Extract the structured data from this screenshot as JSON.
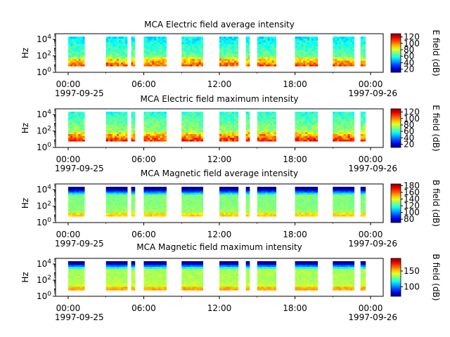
{
  "chart_data": [
    {
      "type": "heatmap",
      "title": "MCA  Electric field average intensity",
      "ylabel": "Hz",
      "yscale": "log",
      "ylim_exponents": [
        0,
        4.7
      ],
      "yticks": [
        {
          "base": "10",
          "exp": "0"
        },
        {
          "base": "10",
          "exp": "2"
        },
        {
          "base": "10",
          "exp": "4"
        }
      ],
      "xticks": [
        "00:00",
        "06:00",
        "12:00",
        "18:00",
        "00:00"
      ],
      "xtick_dates": [
        "1997-09-25",
        "1997-09-26"
      ],
      "xlim_hours": [
        -1,
        25
      ],
      "colorbar_label": "E field (dB)",
      "colorbar_ticks": [
        "20",
        "40",
        "60",
        "80",
        "100",
        "120"
      ],
      "colorbar_range": [
        10,
        130
      ],
      "data_segments_hours": [
        [
          0.0,
          1.3
        ],
        [
          3.0,
          4.7
        ],
        [
          5.0,
          5.3
        ],
        [
          6.0,
          7.8
        ],
        [
          9.0,
          10.7
        ],
        [
          12.0,
          13.5
        ],
        [
          14.1,
          14.4
        ],
        [
          15.0,
          16.5
        ],
        [
          18.0,
          19.8
        ],
        [
          21.0,
          22.7
        ],
        [
          23.2,
          23.6
        ]
      ],
      "intensity_profile": "low-frequency enhancement, 20-120 dB",
      "colormap": "jet"
    },
    {
      "type": "heatmap",
      "title": "MCA  Electric field maximum intensity",
      "ylabel": "Hz",
      "yscale": "log",
      "ylim_exponents": [
        0,
        4.7
      ],
      "yticks": [
        {
          "base": "10",
          "exp": "0"
        },
        {
          "base": "10",
          "exp": "2"
        },
        {
          "base": "10",
          "exp": "4"
        }
      ],
      "xticks": [
        "00:00",
        "06:00",
        "12:00",
        "18:00",
        "00:00"
      ],
      "xtick_dates": [
        "1997-09-25",
        "1997-09-26"
      ],
      "xlim_hours": [
        -1,
        25
      ],
      "colorbar_label": "E field (dB)",
      "colorbar_ticks": [
        "20",
        "40",
        "60",
        "80",
        "100",
        "120"
      ],
      "colorbar_range": [
        10,
        130
      ],
      "data_segments_hours": [
        [
          0.0,
          1.3
        ],
        [
          3.0,
          4.7
        ],
        [
          5.0,
          5.3
        ],
        [
          6.0,
          7.8
        ],
        [
          9.0,
          10.7
        ],
        [
          12.0,
          13.5
        ],
        [
          14.1,
          14.4
        ],
        [
          15.0,
          16.5
        ],
        [
          18.0,
          19.8
        ],
        [
          21.0,
          22.7
        ],
        [
          23.2,
          23.6
        ]
      ],
      "intensity_profile": "low-frequency enhancement, 20-120 dB",
      "colormap": "jet"
    },
    {
      "type": "heatmap",
      "title": "MCA  Magnetic field average intensity",
      "ylabel": "Hz",
      "yscale": "log",
      "ylim_exponents": [
        0,
        4.7
      ],
      "yticks": [
        {
          "base": "10",
          "exp": "0"
        },
        {
          "base": "10",
          "exp": "2"
        },
        {
          "base": "10",
          "exp": "4"
        }
      ],
      "xticks": [
        "00:00",
        "06:00",
        "12:00",
        "18:00",
        "00:00"
      ],
      "xtick_dates": [
        "1997-09-25",
        "1997-09-26"
      ],
      "xlim_hours": [
        -1,
        25
      ],
      "colorbar_label": "B field (dB)",
      "colorbar_ticks": [
        "80",
        "100",
        "120",
        "140",
        "160",
        "180"
      ],
      "colorbar_range": [
        70,
        185
      ],
      "data_segments_hours": [
        [
          0.0,
          1.3
        ],
        [
          3.0,
          4.7
        ],
        [
          5.0,
          5.3
        ],
        [
          6.0,
          7.8
        ],
        [
          9.0,
          10.7
        ],
        [
          12.0,
          13.5
        ],
        [
          14.1,
          14.4
        ],
        [
          15.0,
          16.5
        ],
        [
          18.0,
          19.8
        ],
        [
          21.0,
          22.7
        ],
        [
          23.2,
          23.6
        ]
      ],
      "intensity_profile": "high at low frequencies, decreasing above 10^3 Hz",
      "colormap": "jet"
    },
    {
      "type": "heatmap",
      "title": "MCA  Magnetic field maximum intensity",
      "ylabel": "Hz",
      "yscale": "log",
      "ylim_exponents": [
        0,
        4.7
      ],
      "yticks": [
        {
          "base": "10",
          "exp": "0"
        },
        {
          "base": "10",
          "exp": "2"
        },
        {
          "base": "10",
          "exp": "4"
        }
      ],
      "xticks": [
        "00:00",
        "06:00",
        "12:00",
        "18:00",
        "00:00"
      ],
      "xtick_dates": [
        "1997-09-25",
        "1997-09-26"
      ],
      "xlim_hours": [
        -1,
        25
      ],
      "colorbar_label": "B field (dB)",
      "colorbar_ticks": [
        "100",
        "150"
      ],
      "colorbar_range": [
        70,
        190
      ],
      "data_segments_hours": [
        [
          0.0,
          1.3
        ],
        [
          3.0,
          4.7
        ],
        [
          5.0,
          5.3
        ],
        [
          6.0,
          7.8
        ],
        [
          9.0,
          10.7
        ],
        [
          12.0,
          13.5
        ],
        [
          14.1,
          14.4
        ],
        [
          15.0,
          16.5
        ],
        [
          18.0,
          19.8
        ],
        [
          21.0,
          22.7
        ],
        [
          23.2,
          23.6
        ]
      ],
      "intensity_profile": "high at low frequencies, decreasing above 10^3 Hz",
      "colormap": "jet"
    }
  ]
}
